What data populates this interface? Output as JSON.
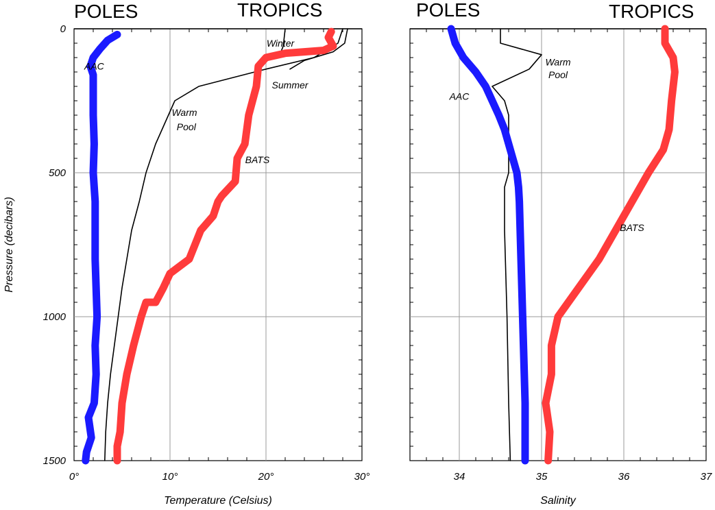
{
  "labels": {
    "left_poles": "POLES",
    "left_tropics": "TROPICS",
    "right_poles": "POLES",
    "right_tropics": "TROPICS"
  },
  "colors": {
    "poles": "#1a1aff",
    "tropics": "#ff3b3b",
    "reference": "#000000",
    "grid": "#999999"
  },
  "chart_data": [
    {
      "type": "line",
      "title": "",
      "xlabel": "Temperature (Celsius)",
      "ylabel": "Pressure (decibars)",
      "xlim": [
        0,
        30
      ],
      "ylim": [
        0,
        1500
      ],
      "y_inverted": true,
      "x_tick_labels": [
        "0°",
        "10°",
        "20°",
        "30°"
      ],
      "x_ticks": [
        0,
        10,
        20,
        30
      ],
      "y_tick_labels": [
        "0",
        "500",
        "1000",
        "1500"
      ],
      "y_ticks": [
        0,
        500,
        1000,
        1500
      ],
      "grid": true,
      "annotations": [
        {
          "text": "Winter",
          "x": 21.5,
          "y": 50
        },
        {
          "text": "Summer",
          "x": 22.5,
          "y": 195
        },
        {
          "text": "Warm",
          "x": 11.5,
          "y": 290
        },
        {
          "text": "Pool",
          "x": 11.7,
          "y": 340
        },
        {
          "text": "BATS",
          "x": 19.1,
          "y": 455
        },
        {
          "text": "AAC",
          "x": 2.1,
          "y": 130
        }
      ],
      "series": [
        {
          "name": "AAC",
          "role": "poles",
          "style": "thick",
          "points": [
            [
              4.5,
              20
            ],
            [
              3.5,
              40
            ],
            [
              2.7,
              70
            ],
            [
              2.0,
              100
            ],
            [
              1.7,
              130
            ],
            [
              2.0,
              160
            ],
            [
              2.0,
              220
            ],
            [
              2.0,
              300
            ],
            [
              2.1,
              400
            ],
            [
              2.0,
              500
            ],
            [
              2.2,
              600
            ],
            [
              2.2,
              700
            ],
            [
              2.2,
              800
            ],
            [
              2.3,
              900
            ],
            [
              2.4,
              1000
            ],
            [
              2.2,
              1100
            ],
            [
              2.3,
              1200
            ],
            [
              2.1,
              1300
            ],
            [
              1.5,
              1350
            ],
            [
              1.8,
              1420
            ],
            [
              1.3,
              1470
            ],
            [
              1.2,
              1500
            ]
          ]
        },
        {
          "name": "BATS",
          "role": "tropics",
          "style": "thick",
          "points": [
            [
              26.8,
              10
            ],
            [
              26.5,
              30
            ],
            [
              27.0,
              60
            ],
            [
              26.0,
              75
            ],
            [
              24.0,
              80
            ],
            [
              22.0,
              85
            ],
            [
              20.0,
              100
            ],
            [
              19.2,
              130
            ],
            [
              19.0,
              200
            ],
            [
              18.2,
              300
            ],
            [
              17.8,
              400
            ],
            [
              17.0,
              450
            ],
            [
              16.8,
              530
            ],
            [
              15.4,
              580
            ],
            [
              15.0,
              600
            ],
            [
              14.5,
              650
            ],
            [
              13.2,
              700
            ],
            [
              12.0,
              800
            ],
            [
              10.0,
              850
            ],
            [
              9.3,
              900
            ],
            [
              8.5,
              950
            ],
            [
              7.5,
              950
            ],
            [
              7.0,
              1000
            ],
            [
              6.2,
              1100
            ],
            [
              5.5,
              1200
            ],
            [
              5.0,
              1300
            ],
            [
              4.8,
              1400
            ],
            [
              4.5,
              1450
            ],
            [
              4.5,
              1500
            ]
          ]
        },
        {
          "name": "Warm Pool",
          "role": "reference",
          "style": "thin",
          "points": [
            [
              28.0,
              0
            ],
            [
              27.5,
              50
            ],
            [
              25.0,
              100
            ],
            [
              20.0,
              140
            ],
            [
              13.0,
              200
            ],
            [
              10.5,
              250
            ],
            [
              8.5,
              400
            ],
            [
              7.5,
              500
            ],
            [
              6.8,
              600
            ],
            [
              6.0,
              700
            ],
            [
              5.5,
              800
            ],
            [
              5.0,
              900
            ],
            [
              4.6,
              1000
            ],
            [
              4.2,
              1100
            ],
            [
              3.8,
              1200
            ],
            [
              3.5,
              1300
            ],
            [
              3.3,
              1400
            ],
            [
              3.2,
              1500
            ]
          ]
        },
        {
          "name": "Winter",
          "role": "reference",
          "style": "thin",
          "points": [
            [
              22.0,
              0
            ],
            [
              21.8,
              60
            ],
            [
              21.5,
              85
            ]
          ]
        },
        {
          "name": "Summer",
          "role": "reference",
          "style": "thin",
          "points": [
            [
              28.5,
              0
            ],
            [
              28.2,
              50
            ],
            [
              27.0,
              80
            ],
            [
              24.0,
              110
            ],
            [
              22.5,
              140
            ]
          ]
        }
      ]
    },
    {
      "type": "line",
      "title": "",
      "xlabel": "Salinity",
      "ylabel": "",
      "xlim": [
        33.4,
        37
      ],
      "ylim": [
        0,
        1500
      ],
      "y_inverted": true,
      "x_tick_labels": [
        "34",
        "35",
        "36",
        "37"
      ],
      "x_ticks": [
        34,
        35,
        36,
        37
      ],
      "y_tick_labels": [],
      "grid": true,
      "annotations": [
        {
          "text": "Warm",
          "x": 35.2,
          "y": 115
        },
        {
          "text": "Pool",
          "x": 35.2,
          "y": 160
        },
        {
          "text": "AAC",
          "x": 34.0,
          "y": 235
        },
        {
          "text": "BATS",
          "x": 36.1,
          "y": 690
        }
      ],
      "series": [
        {
          "name": "AAC",
          "role": "poles",
          "style": "thick",
          "points": [
            [
              33.9,
              0
            ],
            [
              33.95,
              50
            ],
            [
              34.05,
              100
            ],
            [
              34.2,
              150
            ],
            [
              34.32,
              200
            ],
            [
              34.4,
              250
            ],
            [
              34.48,
              300
            ],
            [
              34.55,
              350
            ],
            [
              34.6,
              400
            ],
            [
              34.65,
              450
            ],
            [
              34.7,
              500
            ],
            [
              34.72,
              550
            ],
            [
              34.73,
              600
            ],
            [
              34.74,
              700
            ],
            [
              34.75,
              800
            ],
            [
              34.76,
              900
            ],
            [
              34.77,
              1000
            ],
            [
              34.78,
              1100
            ],
            [
              34.79,
              1200
            ],
            [
              34.8,
              1300
            ],
            [
              34.8,
              1400
            ],
            [
              34.8,
              1500
            ]
          ]
        },
        {
          "name": "BATS",
          "role": "tropics",
          "style": "thick",
          "points": [
            [
              36.5,
              0
            ],
            [
              36.5,
              50
            ],
            [
              36.6,
              100
            ],
            [
              36.62,
              150
            ],
            [
              36.58,
              250
            ],
            [
              36.55,
              350
            ],
            [
              36.48,
              420
            ],
            [
              36.3,
              500
            ],
            [
              36.1,
              600
            ],
            [
              35.9,
              700
            ],
            [
              35.7,
              800
            ],
            [
              35.45,
              900
            ],
            [
              35.2,
              1000
            ],
            [
              35.12,
              1100
            ],
            [
              35.12,
              1200
            ],
            [
              35.05,
              1300
            ],
            [
              35.1,
              1400
            ],
            [
              35.08,
              1500
            ]
          ]
        },
        {
          "name": "Warm Pool",
          "role": "reference",
          "style": "thin",
          "points": [
            [
              34.5,
              0
            ],
            [
              34.5,
              50
            ],
            [
              35.0,
              90
            ],
            [
              34.85,
              140
            ],
            [
              34.4,
              200
            ],
            [
              34.55,
              250
            ],
            [
              34.6,
              300
            ],
            [
              34.6,
              500
            ],
            [
              34.55,
              550
            ],
            [
              34.55,
              700
            ],
            [
              34.58,
              1000
            ],
            [
              34.6,
              1300
            ],
            [
              34.62,
              1500
            ]
          ]
        }
      ]
    }
  ]
}
